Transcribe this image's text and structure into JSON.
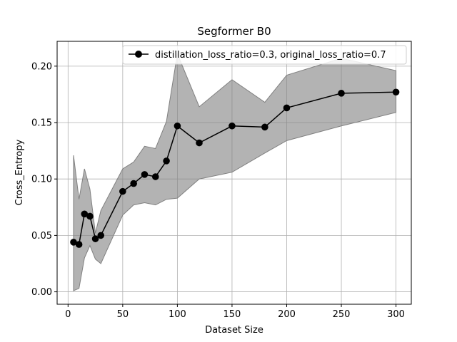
{
  "chart_data": {
    "type": "line",
    "title": "Segformer B0",
    "xlabel": "Dataset Size",
    "ylabel": "Cross_Entropy",
    "xlim": [
      -10,
      314
    ],
    "ylim": [
      -0.011,
      0.222
    ],
    "xticks": [
      0,
      50,
      100,
      150,
      200,
      250,
      300
    ],
    "yticks": [
      0.0,
      0.05,
      0.1,
      0.15,
      0.2
    ],
    "xtick_labels": [
      "0",
      "50",
      "100",
      "150",
      "200",
      "250",
      "300"
    ],
    "ytick_labels": [
      "0.00",
      "0.05",
      "0.10",
      "0.15",
      "0.20"
    ],
    "grid": true,
    "legend_position": "top-right",
    "series": [
      {
        "name": "distillation_loss_ratio=0.3, original_loss_ratio=0.7",
        "color": "#000000",
        "marker": "circle",
        "x": [
          5,
          10,
          15,
          20,
          25,
          30,
          50,
          60,
          70,
          80,
          90,
          100,
          120,
          150,
          180,
          200,
          250,
          300
        ],
        "y": [
          0.044,
          0.042,
          0.069,
          0.067,
          0.047,
          0.05,
          0.089,
          0.096,
          0.104,
          0.102,
          0.116,
          0.147,
          0.132,
          0.147,
          0.146,
          0.163,
          0.176,
          0.177
        ],
        "upper": [
          0.121,
          0.082,
          0.109,
          0.091,
          0.052,
          0.072,
          0.109,
          0.115,
          0.129,
          0.127,
          0.151,
          0.211,
          0.164,
          0.188,
          0.168,
          0.192,
          0.207,
          0.196
        ],
        "lower": [
          0.001,
          0.003,
          0.03,
          0.041,
          0.029,
          0.025,
          0.068,
          0.077,
          0.079,
          0.077,
          0.082,
          0.083,
          0.1,
          0.106,
          0.123,
          0.134,
          0.147,
          0.159
        ],
        "band_color": "#808080"
      }
    ]
  }
}
